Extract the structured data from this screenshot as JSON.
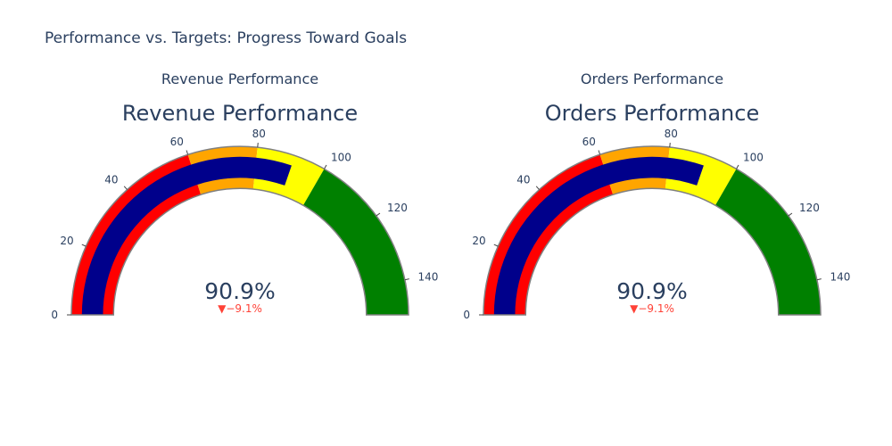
{
  "title": "Performance vs. Targets: Progress Toward Goals",
  "colors": {
    "bar": "#00008b",
    "border": "#808080",
    "text": "#2a3f5f",
    "delta_decreasing": "#ff4136"
  },
  "chart_data": [
    {
      "type": "gauge",
      "subplot_title": "Revenue Performance",
      "title": "Revenue Performance",
      "value": 90.9,
      "value_display": "90.9%",
      "delta": -9.1,
      "delta_display": "▼−9.1%",
      "axis_range": [
        0,
        150
      ],
      "tick_values": [
        0,
        20,
        40,
        60,
        80,
        100,
        120,
        140
      ],
      "tick_labels": [
        "0",
        "20",
        "40",
        "60",
        "80",
        "100",
        "120",
        "140"
      ],
      "steps": [
        {
          "range": [
            0,
            60
          ],
          "color": "#ff0000"
        },
        {
          "range": [
            60,
            80
          ],
          "color": "#ffa500"
        },
        {
          "range": [
            80,
            100
          ],
          "color": "#ffff00"
        },
        {
          "range": [
            100,
            150
          ],
          "color": "#008000"
        }
      ],
      "bar_color": "#00008b"
    },
    {
      "type": "gauge",
      "subplot_title": "Orders Performance",
      "title": "Orders Performance",
      "value": 90.9,
      "value_display": "90.9%",
      "delta": -9.1,
      "delta_display": "▼−9.1%",
      "axis_range": [
        0,
        150
      ],
      "tick_values": [
        0,
        20,
        40,
        60,
        80,
        100,
        120,
        140
      ],
      "tick_labels": [
        "0",
        "20",
        "40",
        "60",
        "80",
        "100",
        "120",
        "140"
      ],
      "steps": [
        {
          "range": [
            0,
            60
          ],
          "color": "#ff0000"
        },
        {
          "range": [
            60,
            80
          ],
          "color": "#ffa500"
        },
        {
          "range": [
            80,
            100
          ],
          "color": "#ffff00"
        },
        {
          "range": [
            100,
            150
          ],
          "color": "#008000"
        }
      ],
      "bar_color": "#00008b"
    }
  ]
}
